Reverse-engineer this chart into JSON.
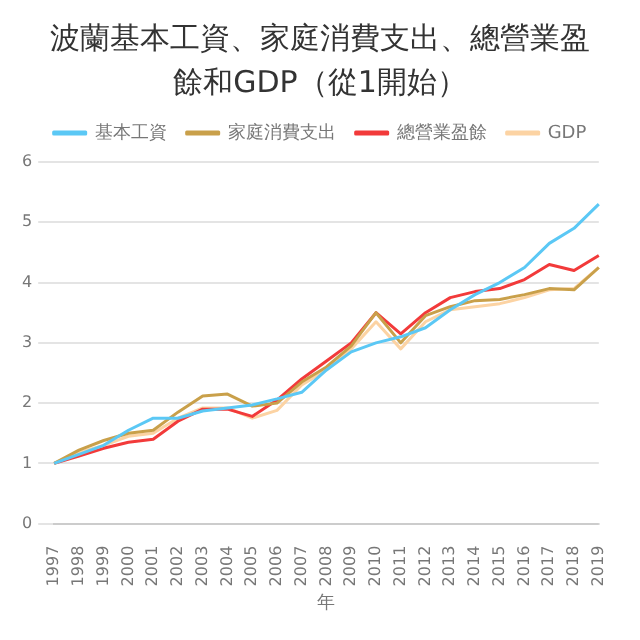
{
  "chart_data": {
    "type": "line",
    "title": "波蘭基本工資、家庭消費支出、總營業盈餘和GDP（從1開始）",
    "xlabel": "年",
    "categories": [
      "1997",
      "1998",
      "1999",
      "2000",
      "2001",
      "2002",
      "2003",
      "2004",
      "2005",
      "2006",
      "2007",
      "2008",
      "2009",
      "2010",
      "2011",
      "2012",
      "2013",
      "2014",
      "2015",
      "2016",
      "2017",
      "2018",
      "2019"
    ],
    "series": [
      {
        "name": "基本工資",
        "color": "#5bc8f5",
        "values": [
          1,
          1.15,
          1.3,
          1.55,
          1.75,
          1.75,
          1.87,
          1.92,
          1.97,
          2.07,
          2.18,
          2.55,
          2.85,
          3.0,
          3.1,
          3.25,
          3.55,
          3.8,
          4.0,
          4.25,
          4.65,
          4.9,
          5.3
        ]
      },
      {
        "name": "家庭消費支出",
        "color": "#c9a04a",
        "values": [
          1,
          1.22,
          1.38,
          1.5,
          1.55,
          1.85,
          2.12,
          2.15,
          1.95,
          2.0,
          2.35,
          2.6,
          2.95,
          3.5,
          3.0,
          3.45,
          3.6,
          3.7,
          3.72,
          3.8,
          3.9,
          3.88,
          4.25
        ]
      },
      {
        "name": "總營業盈餘",
        "color": "#f23a3a",
        "values": [
          1,
          1.12,
          1.25,
          1.35,
          1.4,
          1.7,
          1.9,
          1.9,
          1.78,
          2.05,
          2.4,
          2.7,
          3.0,
          3.5,
          3.15,
          3.5,
          3.75,
          3.85,
          3.9,
          4.05,
          4.3,
          4.2,
          4.45
        ]
      },
      {
        "name": "GDP",
        "color": "#fcd3a3",
        "values": [
          1,
          1.18,
          1.3,
          1.45,
          1.5,
          1.75,
          1.92,
          1.92,
          1.75,
          1.88,
          2.3,
          2.55,
          2.9,
          3.35,
          2.9,
          3.35,
          3.55,
          3.6,
          3.65,
          3.75,
          3.88,
          3.9,
          4.25
        ]
      }
    ],
    "ylim": [
      0,
      6
    ],
    "yticks": [
      0,
      1,
      2,
      3,
      4,
      5,
      6
    ],
    "grid": "y",
    "legend": "top",
    "marker": "none",
    "line_style": "solid"
  }
}
